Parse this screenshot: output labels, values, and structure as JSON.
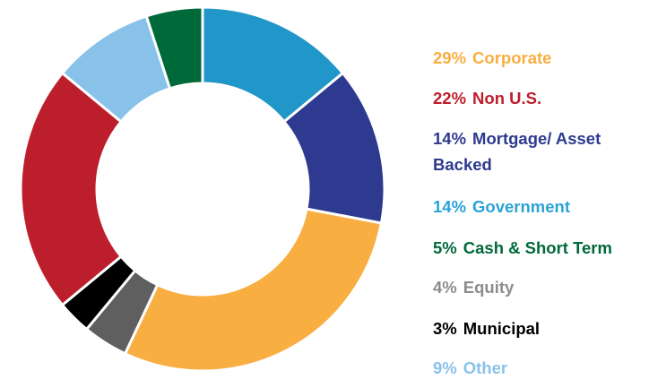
{
  "chart_data": {
    "type": "donut",
    "categories": [
      "Government",
      "Mortgage/ Asset Backed",
      "Corporate",
      "Equity",
      "Municipal",
      "Non U.S.",
      "Other",
      "Cash & Short Term"
    ],
    "values": [
      14,
      14,
      29,
      4,
      3,
      22,
      9,
      5
    ],
    "value_labels": [
      "14%",
      "14%",
      "29%",
      "4%",
      "3%",
      "22%",
      "9%",
      "5%"
    ],
    "colors": [
      "#2196c9",
      "#2e3a8f",
      "#f9ae42",
      "#5f5f5f",
      "#000000",
      "#bd1e2b",
      "#89c2e8",
      "#00693a"
    ],
    "legend_colors": [
      "#2ba3d6",
      "#2e3a8f",
      "#f9ae42",
      "#8c8c8c",
      "#000000",
      "#bd1e2b",
      "#89c2e8",
      "#00693a"
    ],
    "legend": "right"
  }
}
